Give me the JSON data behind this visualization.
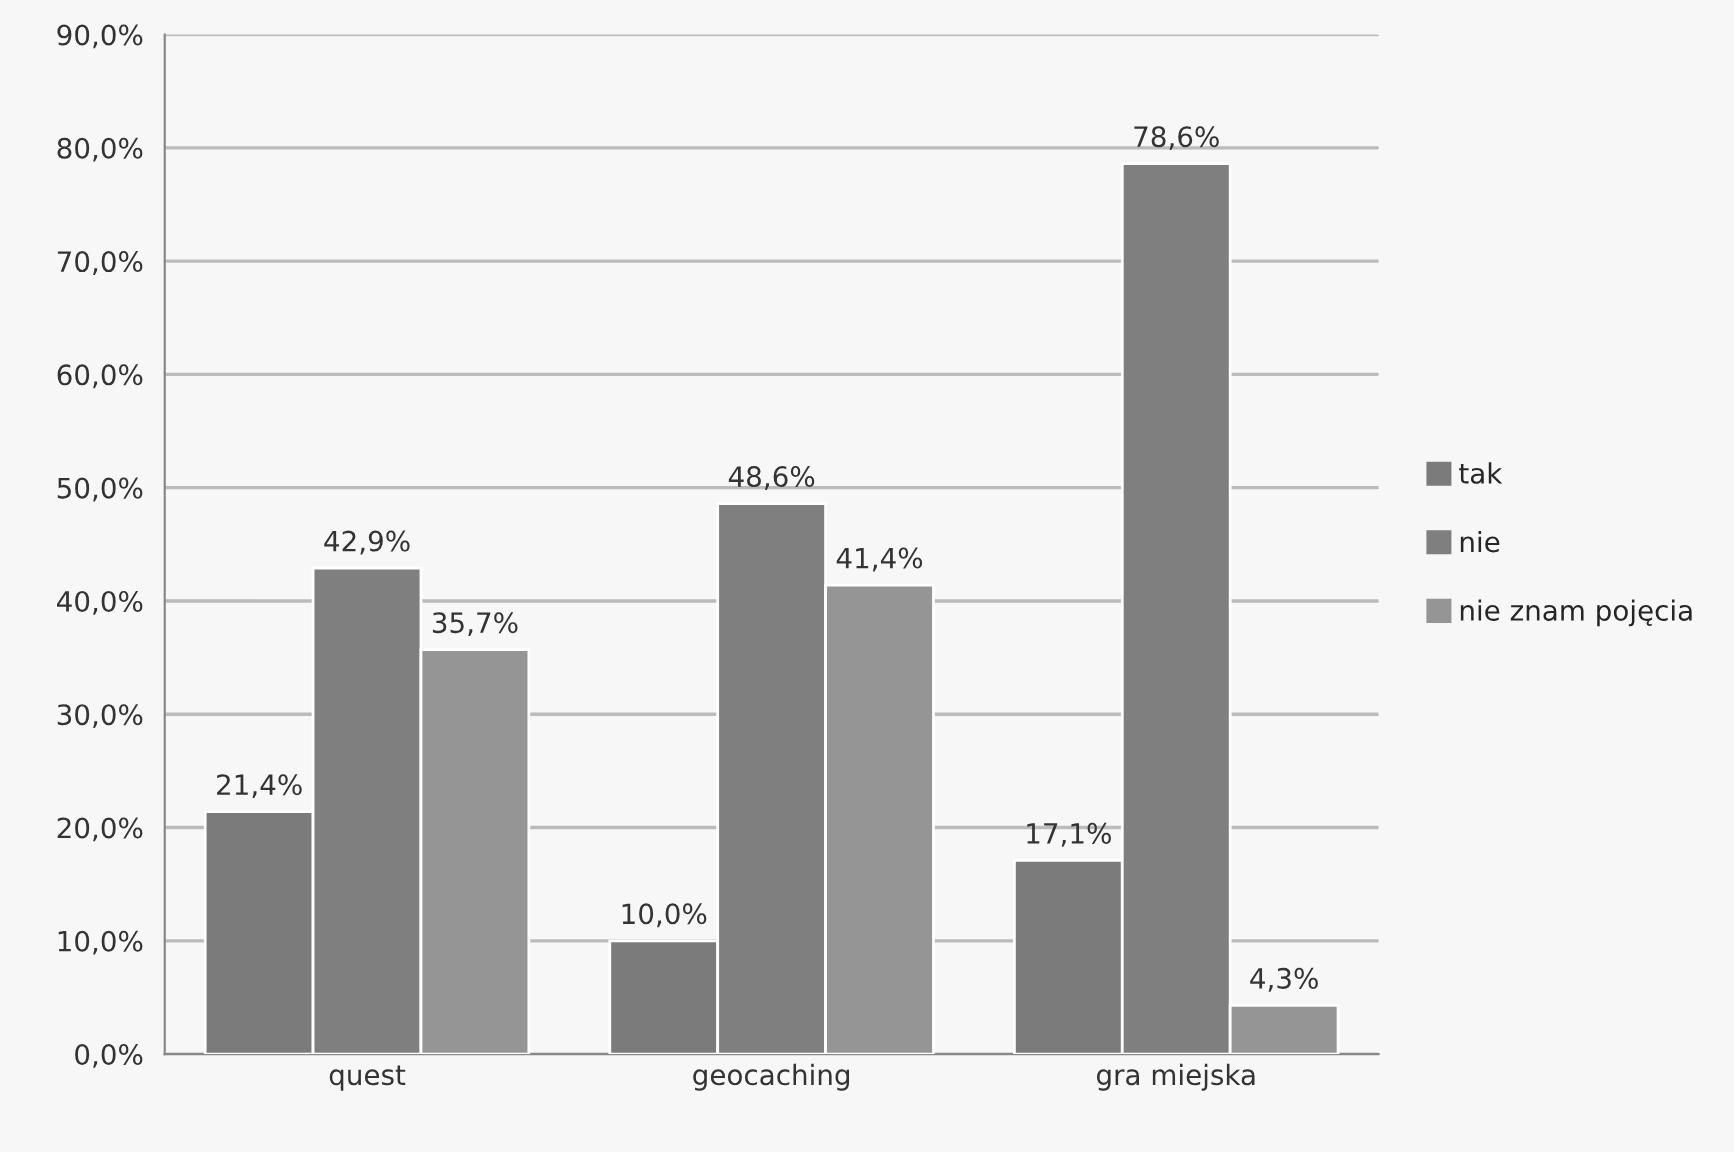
{
  "chart_data": {
    "type": "bar",
    "categories": [
      "quest",
      "geocaching",
      "gra miejska"
    ],
    "series": [
      {
        "name": "tak",
        "color": "#7b7b7b",
        "values": [
          21.4,
          10.0,
          17.1
        ],
        "value_labels": [
          "21,4%",
          "10,0%",
          "17,1%"
        ]
      },
      {
        "name": "nie",
        "color": "#7f7f7f",
        "values": [
          42.9,
          48.6,
          78.6
        ],
        "value_labels": [
          "42,9%",
          "48,6%",
          "78,6%"
        ]
      },
      {
        "name": "nie znam pojęcia",
        "color": "#959595",
        "values": [
          35.7,
          41.4,
          4.3
        ],
        "value_labels": [
          "35,7%",
          "41,4%",
          "4,3%"
        ]
      }
    ],
    "ylim": [
      0,
      90
    ],
    "yticks": [
      {
        "value": 0,
        "label": "0,0%"
      },
      {
        "value": 10,
        "label": "10,0%"
      },
      {
        "value": 20,
        "label": "20,0%"
      },
      {
        "value": 30,
        "label": "30,0%"
      },
      {
        "value": 40,
        "label": "40,0%"
      },
      {
        "value": 50,
        "label": "50,0%"
      },
      {
        "value": 60,
        "label": "60,0%"
      },
      {
        "value": 70,
        "label": "70,0%"
      },
      {
        "value": 80,
        "label": "80,0%"
      },
      {
        "value": 90,
        "label": "90,0%"
      }
    ],
    "grid": "y",
    "legend": "right"
  }
}
